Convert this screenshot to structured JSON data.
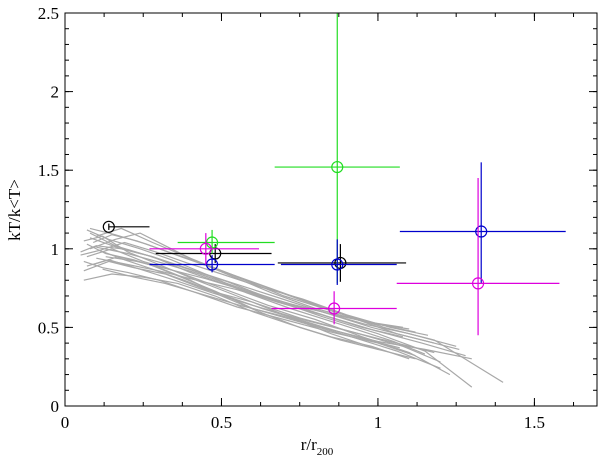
{
  "chart_data": {
    "type": "scatter",
    "xlabel": "r/r",
    "xlabel_sub": "200",
    "ylabel": "kT/k<T>",
    "xlim": [
      0,
      1.7
    ],
    "ylim": [
      0,
      2.5
    ],
    "x_ticks": [
      0,
      0.5,
      1,
      1.5
    ],
    "x_tick_labels": [
      "0",
      "0.5",
      "1",
      "1.5"
    ],
    "y_ticks": [
      0,
      0.5,
      1,
      1.5,
      2,
      2.5
    ],
    "y_tick_labels": [
      "0",
      "0.5",
      "1",
      "1.5",
      "2",
      "2.5"
    ],
    "grid": false,
    "profiles_color": "#a8a8a8",
    "profiles": [
      [
        [
          0.06,
          1.05
        ],
        [
          0.12,
          1.08
        ],
        [
          0.2,
          0.98
        ],
        [
          0.3,
          0.9
        ],
        [
          0.42,
          0.8
        ],
        [
          0.55,
          0.7
        ],
        [
          0.7,
          0.58
        ],
        [
          0.85,
          0.46
        ],
        [
          1.0,
          0.36
        ],
        [
          1.12,
          0.3
        ]
      ],
      [
        [
          0.07,
          0.95
        ],
        [
          0.15,
          1.0
        ],
        [
          0.25,
          0.92
        ],
        [
          0.35,
          0.86
        ],
        [
          0.5,
          0.75
        ],
        [
          0.65,
          0.64
        ],
        [
          0.8,
          0.55
        ],
        [
          0.95,
          0.44
        ],
        [
          1.1,
          0.34
        ],
        [
          1.23,
          0.2
        ]
      ],
      [
        [
          0.08,
          1.1
        ],
        [
          0.16,
          1.02
        ],
        [
          0.26,
          0.96
        ],
        [
          0.38,
          0.88
        ],
        [
          0.52,
          0.79
        ],
        [
          0.66,
          0.68
        ],
        [
          0.82,
          0.57
        ],
        [
          1.0,
          0.46
        ],
        [
          1.15,
          0.35
        ],
        [
          1.3,
          0.12
        ]
      ],
      [
        [
          0.06,
          0.86
        ],
        [
          0.14,
          0.92
        ],
        [
          0.22,
          0.88
        ],
        [
          0.32,
          0.84
        ],
        [
          0.45,
          0.74
        ],
        [
          0.6,
          0.66
        ],
        [
          0.75,
          0.56
        ],
        [
          0.92,
          0.47
        ],
        [
          1.08,
          0.38
        ],
        [
          1.2,
          0.28
        ]
      ],
      [
        [
          0.1,
          1.08
        ],
        [
          0.18,
          1.13
        ],
        [
          0.28,
          1.04
        ],
        [
          0.4,
          0.94
        ],
        [
          0.55,
          0.82
        ],
        [
          0.7,
          0.7
        ],
        [
          0.86,
          0.6
        ],
        [
          1.02,
          0.5
        ],
        [
          1.18,
          0.42
        ],
        [
          1.4,
          0.15
        ]
      ],
      [
        [
          0.05,
          0.98
        ],
        [
          0.1,
          1.02
        ],
        [
          0.18,
          1.0
        ],
        [
          0.28,
          0.95
        ],
        [
          0.4,
          0.85
        ],
        [
          0.52,
          0.77
        ],
        [
          0.68,
          0.66
        ],
        [
          0.82,
          0.58
        ],
        [
          0.95,
          0.5
        ],
        [
          1.08,
          0.44
        ]
      ],
      [
        [
          0.07,
          1.12
        ],
        [
          0.14,
          1.06
        ],
        [
          0.24,
          1.0
        ],
        [
          0.34,
          0.93
        ],
        [
          0.46,
          0.83
        ],
        [
          0.58,
          0.72
        ],
        [
          0.72,
          0.62
        ],
        [
          0.88,
          0.52
        ],
        [
          1.05,
          0.41
        ],
        [
          1.15,
          0.33
        ]
      ],
      [
        [
          0.09,
          0.9
        ],
        [
          0.17,
          0.95
        ],
        [
          0.27,
          0.9
        ],
        [
          0.37,
          0.82
        ],
        [
          0.48,
          0.73
        ],
        [
          0.6,
          0.62
        ],
        [
          0.74,
          0.54
        ],
        [
          0.9,
          0.45
        ],
        [
          1.06,
          0.35
        ],
        [
          1.2,
          0.24
        ]
      ],
      [
        [
          0.06,
          0.8
        ],
        [
          0.15,
          0.84
        ],
        [
          0.25,
          0.82
        ],
        [
          0.36,
          0.78
        ],
        [
          0.48,
          0.7
        ],
        [
          0.6,
          0.6
        ],
        [
          0.72,
          0.52
        ],
        [
          0.85,
          0.44
        ],
        [
          0.98,
          0.38
        ],
        [
          1.1,
          0.3
        ]
      ],
      [
        [
          0.08,
          1.0
        ],
        [
          0.16,
          1.06
        ],
        [
          0.24,
          1.1
        ],
        [
          0.32,
          1.02
        ],
        [
          0.42,
          0.92
        ],
        [
          0.54,
          0.82
        ],
        [
          0.66,
          0.72
        ],
        [
          0.8,
          0.62
        ],
        [
          0.95,
          0.54
        ],
        [
          1.08,
          0.5
        ]
      ],
      [
        [
          0.1,
          0.94
        ],
        [
          0.2,
          0.9
        ],
        [
          0.3,
          0.86
        ],
        [
          0.42,
          0.8
        ],
        [
          0.55,
          0.74
        ],
        [
          0.68,
          0.66
        ],
        [
          0.82,
          0.6
        ],
        [
          0.96,
          0.52
        ],
        [
          1.1,
          0.46
        ],
        [
          1.25,
          0.38
        ]
      ],
      [
        [
          0.07,
          1.03
        ],
        [
          0.13,
          0.97
        ],
        [
          0.22,
          0.93
        ],
        [
          0.3,
          0.88
        ],
        [
          0.4,
          0.8
        ],
        [
          0.5,
          0.7
        ],
        [
          0.62,
          0.6
        ],
        [
          0.75,
          0.5
        ],
        [
          0.88,
          0.42
        ],
        [
          1.0,
          0.36
        ]
      ],
      [
        [
          0.11,
          0.99
        ],
        [
          0.19,
          1.04
        ],
        [
          0.29,
          0.98
        ],
        [
          0.39,
          0.91
        ],
        [
          0.5,
          0.84
        ],
        [
          0.62,
          0.76
        ],
        [
          0.76,
          0.68
        ],
        [
          0.9,
          0.58
        ],
        [
          1.04,
          0.5
        ],
        [
          1.16,
          0.45
        ]
      ],
      [
        [
          0.06,
          0.92
        ],
        [
          0.12,
          0.88
        ],
        [
          0.2,
          0.85
        ],
        [
          0.3,
          0.8
        ],
        [
          0.42,
          0.72
        ],
        [
          0.55,
          0.63
        ],
        [
          0.7,
          0.55
        ],
        [
          0.85,
          0.47
        ],
        [
          1.0,
          0.4
        ],
        [
          1.12,
          0.32
        ]
      ],
      [
        [
          0.08,
          1.07
        ],
        [
          0.18,
          1.0
        ],
        [
          0.28,
          0.95
        ],
        [
          0.4,
          0.87
        ],
        [
          0.54,
          0.78
        ],
        [
          0.68,
          0.69
        ],
        [
          0.82,
          0.6
        ],
        [
          0.98,
          0.5
        ],
        [
          1.12,
          0.43
        ],
        [
          1.26,
          0.36
        ]
      ],
      [
        [
          0.12,
          0.87
        ],
        [
          0.22,
          0.82
        ],
        [
          0.32,
          0.78
        ],
        [
          0.44,
          0.71
        ],
        [
          0.56,
          0.64
        ],
        [
          0.7,
          0.57
        ],
        [
          0.84,
          0.49
        ],
        [
          1.0,
          0.41
        ],
        [
          1.15,
          0.36
        ],
        [
          1.3,
          0.3
        ]
      ],
      [
        [
          0.09,
          1.04
        ],
        [
          0.15,
          1.09
        ],
        [
          0.23,
          1.05
        ],
        [
          0.33,
          0.98
        ],
        [
          0.45,
          0.9
        ],
        [
          0.58,
          0.8
        ],
        [
          0.72,
          0.7
        ],
        [
          0.86,
          0.6
        ],
        [
          1.0,
          0.52
        ],
        [
          1.12,
          0.47
        ]
      ],
      [
        [
          0.05,
          0.96
        ],
        [
          0.11,
          0.99
        ],
        [
          0.19,
          0.93
        ],
        [
          0.28,
          0.87
        ],
        [
          0.38,
          0.8
        ],
        [
          0.5,
          0.71
        ],
        [
          0.63,
          0.62
        ],
        [
          0.78,
          0.53
        ],
        [
          0.93,
          0.44
        ],
        [
          1.07,
          0.37
        ]
      ],
      [
        [
          0.1,
          1.01
        ],
        [
          0.2,
          0.97
        ],
        [
          0.31,
          0.91
        ],
        [
          0.43,
          0.84
        ],
        [
          0.56,
          0.75
        ],
        [
          0.7,
          0.66
        ],
        [
          0.84,
          0.57
        ],
        [
          0.99,
          0.48
        ],
        [
          1.14,
          0.4
        ],
        [
          1.28,
          0.32
        ]
      ],
      [
        [
          0.07,
          0.89
        ],
        [
          0.14,
          0.93
        ],
        [
          0.24,
          0.87
        ],
        [
          0.35,
          0.8
        ],
        [
          0.47,
          0.72
        ],
        [
          0.6,
          0.64
        ],
        [
          0.74,
          0.56
        ],
        [
          0.88,
          0.49
        ],
        [
          1.02,
          0.42
        ],
        [
          1.18,
          0.34
        ]
      ],
      [
        [
          0.13,
          0.95
        ],
        [
          0.23,
          0.92
        ],
        [
          0.33,
          0.87
        ],
        [
          0.45,
          0.81
        ],
        [
          0.58,
          0.73
        ],
        [
          0.72,
          0.65
        ],
        [
          0.86,
          0.58
        ],
        [
          1.0,
          0.52
        ],
        [
          1.1,
          0.49
        ]
      ],
      [
        [
          0.08,
          1.13
        ],
        [
          0.16,
          1.09
        ],
        [
          0.26,
          1.03
        ],
        [
          0.37,
          0.95
        ],
        [
          0.5,
          0.86
        ],
        [
          0.64,
          0.76
        ],
        [
          0.78,
          0.66
        ],
        [
          0.92,
          0.56
        ],
        [
          1.06,
          0.46
        ],
        [
          1.18,
          0.4
        ]
      ]
    ],
    "series": [
      {
        "color": "#000000",
        "points": [
          {
            "x": 0.14,
            "y": 1.14,
            "xerr": [
              0.14,
              0.27
            ],
            "yerr": [
              1.12,
              1.16
            ]
          },
          {
            "x": 0.48,
            "y": 0.97,
            "xerr": [
              0.29,
              0.66
            ],
            "yerr": [
              0.91,
              1.03
            ]
          },
          {
            "x": 0.88,
            "y": 0.91,
            "xerr": [
              0.68,
              1.09
            ],
            "yerr": [
              0.79,
              1.03
            ]
          }
        ]
      },
      {
        "color": "#22dd22",
        "points": [
          {
            "x": 0.47,
            "y": 1.04,
            "xerr": [
              0.36,
              0.67
            ],
            "yerr": [
              0.97,
              1.12
            ]
          },
          {
            "x": 0.87,
            "y": 1.52,
            "xerr": [
              0.67,
              1.07
            ],
            "yerr": [
              0.78,
              2.5
            ]
          }
        ]
      },
      {
        "color": "#0000cc",
        "points": [
          {
            "x": 0.47,
            "y": 0.9,
            "xerr": [
              0.27,
              0.67
            ],
            "yerr": [
              0.85,
              0.96
            ]
          },
          {
            "x": 0.87,
            "y": 0.9,
            "xerr": [
              0.69,
              1.06
            ],
            "yerr": [
              0.77,
              1.06
            ]
          },
          {
            "x": 1.33,
            "y": 1.11,
            "xerr": [
              1.07,
              1.6
            ],
            "yerr": [
              0.78,
              1.55
            ]
          }
        ]
      },
      {
        "color": "#dd00dd",
        "points": [
          {
            "x": 0.45,
            "y": 1.0,
            "xerr": [
              0.27,
              0.62
            ],
            "yerr": [
              0.9,
              1.1
            ]
          },
          {
            "x": 0.86,
            "y": 0.62,
            "xerr": [
              0.66,
              1.06
            ],
            "yerr": [
              0.52,
              0.73
            ]
          },
          {
            "x": 1.32,
            "y": 0.78,
            "xerr": [
              1.06,
              1.58
            ],
            "yerr": [
              0.45,
              1.45
            ]
          }
        ]
      }
    ]
  }
}
